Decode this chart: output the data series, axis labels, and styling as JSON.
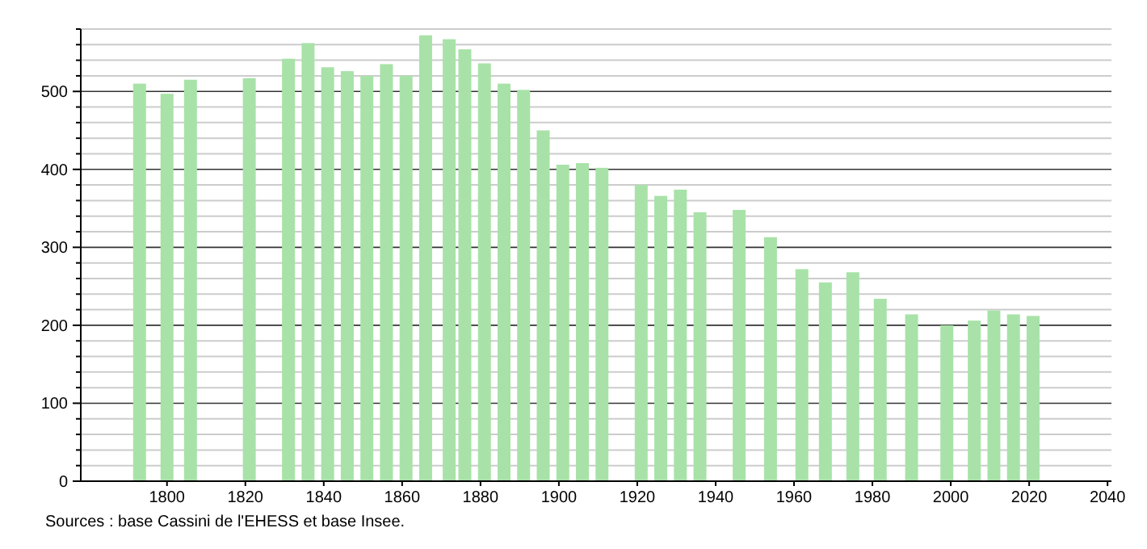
{
  "chart_data": {
    "type": "bar",
    "x": [
      1793,
      1800,
      1806,
      1821,
      1831,
      1836,
      1841,
      1846,
      1851,
      1856,
      1861,
      1866,
      1872,
      1876,
      1881,
      1886,
      1891,
      1896,
      1901,
      1906,
      1911,
      1921,
      1926,
      1931,
      1936,
      1946,
      1954,
      1962,
      1968,
      1975,
      1982,
      1990,
      1999,
      2006,
      2011,
      2016,
      2021
    ],
    "values": [
      510,
      497,
      515,
      517,
      542,
      562,
      531,
      526,
      520,
      535,
      520,
      572,
      567,
      554,
      536,
      510,
      502,
      450,
      406,
      408,
      402,
      380,
      366,
      374,
      345,
      348,
      313,
      272,
      255,
      268,
      234,
      214,
      200,
      206,
      219,
      214,
      212
    ],
    "color": "#a8e2a8",
    "xlim": [
      1778,
      2041
    ],
    "xticks": [
      1800,
      1820,
      1840,
      1860,
      1880,
      1900,
      1920,
      1940,
      1960,
      1980,
      2000,
      2020,
      2040
    ],
    "ylim": [
      0,
      580
    ],
    "yticks": [
      0,
      {
        "value": 20,
        "label": null
      },
      {
        "value": 40,
        "label": null
      },
      {
        "value": 60,
        "label": null
      },
      {
        "value": 80,
        "label": null
      },
      100,
      {
        "value": 120,
        "label": null
      },
      {
        "value": 140,
        "label": null
      },
      {
        "value": 160,
        "label": null
      },
      {
        "value": 180,
        "label": null
      },
      200,
      {
        "value": 220,
        "label": null
      },
      {
        "value": 240,
        "label": null
      },
      {
        "value": 260,
        "label": null
      },
      {
        "value": 280,
        "label": null
      },
      300,
      {
        "value": 320,
        "label": null
      },
      {
        "value": 340,
        "label": null
      },
      {
        "value": 360,
        "label": null
      },
      {
        "value": 380,
        "label": null
      },
      400,
      {
        "value": 420,
        "label": null
      },
      {
        "value": 440,
        "label": null
      },
      {
        "value": 460,
        "label": null
      },
      {
        "value": 480,
        "label": null
      },
      500,
      {
        "value": 520,
        "label": null
      },
      {
        "value": 540,
        "label": null
      },
      {
        "value": 560,
        "label": null
      },
      {
        "value": 580,
        "label": null
      }
    ],
    "grid": "y",
    "annotations": [
      "Sources : base Cassini de l'EHESS et base Insee."
    ]
  }
}
